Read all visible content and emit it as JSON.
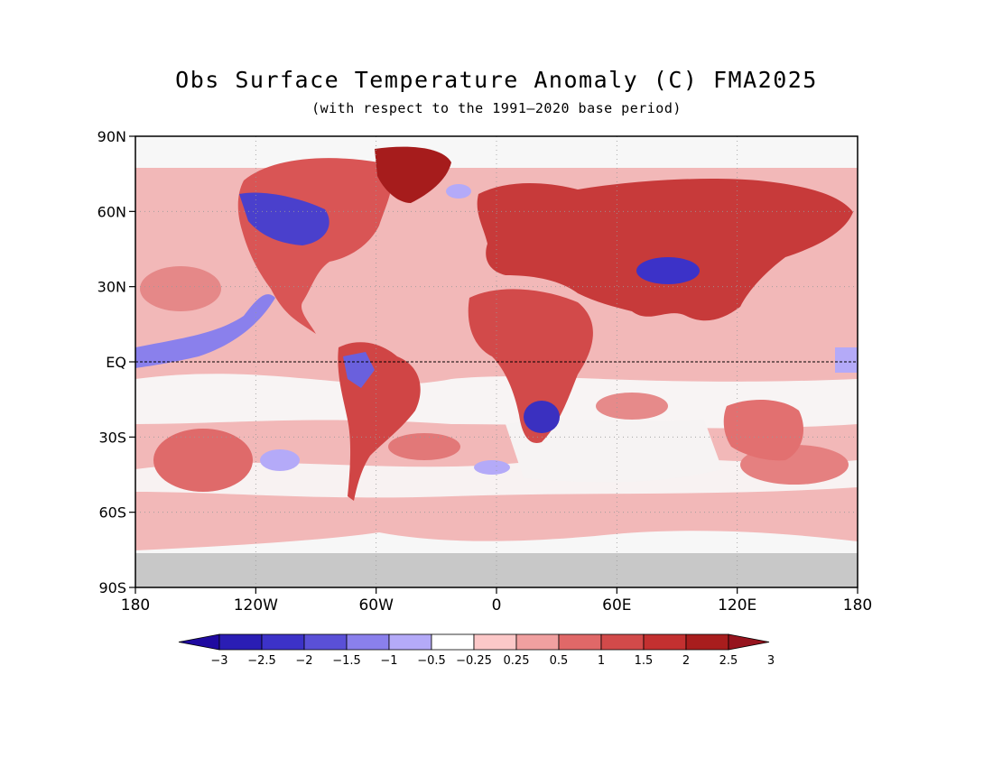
{
  "title": "Obs Surface Temperature Anomaly (C) FMA2025",
  "subtitle": "(with respect to the 1991—2020 base period)",
  "map": {
    "lat_ticks": [
      "90N",
      "60N",
      "30N",
      "EQ",
      "30S",
      "60S",
      "90S"
    ],
    "lon_ticks": [
      "180",
      "120W",
      "60W",
      "0",
      "60E",
      "120E",
      "180"
    ],
    "equator_line": "dashed",
    "grid": "dotted",
    "missing_data_color": "#c8c8c8"
  },
  "colorbar": {
    "labels": [
      "−3",
      "−2.5",
      "−2",
      "−1.5",
      "−1",
      "−0.5",
      "−0.25",
      "0.25",
      "0.5",
      "1",
      "1.5",
      "2",
      "2.5",
      "3"
    ],
    "colors": [
      "#1f0aa0",
      "#2a1db4",
      "#3c32c8",
      "#5a50d7",
      "#8a80ec",
      "#b4aaf8",
      "#ffffff",
      "#fcc8c8",
      "#f0a0a0",
      "#e06868",
      "#d24a4a",
      "#c33030",
      "#a81d1d",
      "#96141e"
    ]
  }
}
